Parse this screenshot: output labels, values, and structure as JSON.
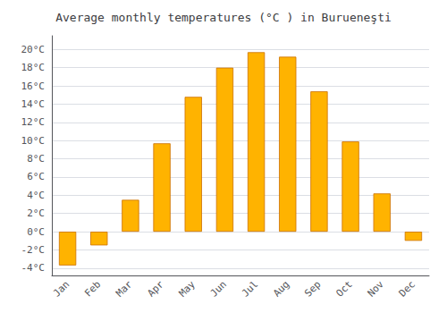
{
  "chart_data": {
    "type": "bar",
    "title": "Average monthly temperatures (°C ) in Burueneşti",
    "categories": [
      "Jan",
      "Feb",
      "Mar",
      "Apr",
      "May",
      "Jun",
      "Jul",
      "Aug",
      "Sep",
      "Oct",
      "Nov",
      "Dec"
    ],
    "values": [
      -3.7,
      -1.5,
      3.5,
      9.7,
      14.8,
      18.0,
      19.7,
      19.2,
      15.4,
      9.9,
      4.2,
      -1.0
    ],
    "color": "#FFB300",
    "ylim": [
      -4.8,
      21.5
    ],
    "yticks": [
      {
        "value": -4,
        "label": "-4°C"
      },
      {
        "value": -2,
        "label": "-2°C"
      },
      {
        "value": 0,
        "label": "0°C"
      },
      {
        "value": 2,
        "label": "2°C"
      },
      {
        "value": 4,
        "label": "4°C"
      },
      {
        "value": 6,
        "label": "6°C"
      },
      {
        "value": 8,
        "label": "8°C"
      },
      {
        "value": 10,
        "label": "10°C"
      },
      {
        "value": 12,
        "label": "12°C"
      },
      {
        "value": 14,
        "label": "14°C"
      },
      {
        "value": 16,
        "label": "16°C"
      },
      {
        "value": 18,
        "label": "18°C"
      },
      {
        "value": 20,
        "label": "20°C"
      }
    ],
    "grid": true
  }
}
